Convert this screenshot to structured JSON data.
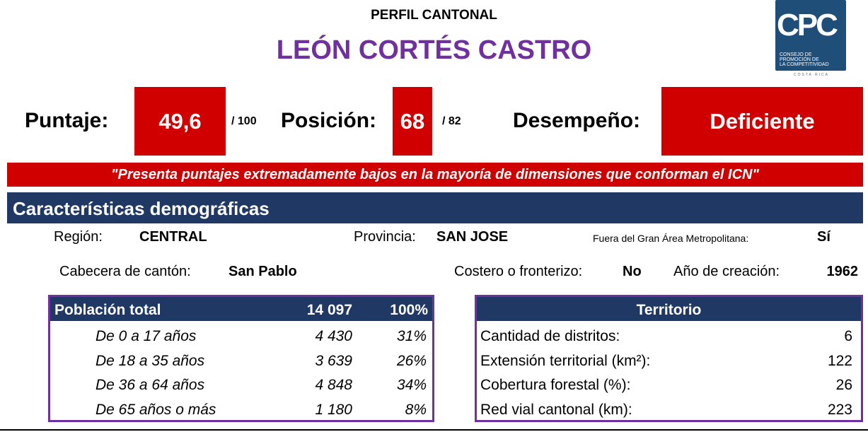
{
  "header": {
    "subtitle": "PERFIL CANTONAL",
    "title": "LEÓN CORTÉS CASTRO",
    "logo": {
      "letters": "CPC",
      "line1": "CONSEJO DE",
      "line2": "PROMOCIÓN DE",
      "line3": "LA COMPETITIVIDAD",
      "country": "COSTA RICA"
    }
  },
  "scores": {
    "score_label": "Puntaje:",
    "score": "49,6",
    "score_max": "/ 100",
    "position_label": "Posición:",
    "position": "68",
    "position_max": "/ 82",
    "performance_label": "Desempeño:",
    "performance": "Deficiente"
  },
  "quote": "\"Presenta puntajes extremadamente bajos en la mayoría de dimensiones que conforman el ICN\"",
  "section": {
    "title": "Características demográficas"
  },
  "info": {
    "region_label": "Región:",
    "region": "CENTRAL",
    "province_label": "Provincia:",
    "province": "SAN JOSE",
    "gam_label": "Fuera del Gran Área Metropolitana:",
    "gam": "Sí",
    "head_label": "Cabecera de cantón:",
    "head": "San Pablo",
    "coastal_label": "Costero o fronterizo:",
    "coastal": "No",
    "year_label": "Año de creación:",
    "year": "1962"
  },
  "population": {
    "header": [
      "Población total",
      "14 097",
      "100%"
    ],
    "rows": [
      [
        "De 0 a 17 años",
        "4 430",
        "31%"
      ],
      [
        "De 18 a 35 años",
        "3 639",
        "26%"
      ],
      [
        "De 36 a 64 años",
        "4 848",
        "34%"
      ],
      [
        "De 65 años o más",
        "1 180",
        "8%"
      ]
    ]
  },
  "territory": {
    "title": "Territorio",
    "rows": [
      [
        "Cantidad de distritos:",
        "6"
      ],
      [
        "Extensión territorial (km²):",
        "122"
      ],
      [
        "Cobertura forestal (%):",
        "26"
      ],
      [
        "Red vial cantonal (km):",
        "223"
      ]
    ]
  }
}
